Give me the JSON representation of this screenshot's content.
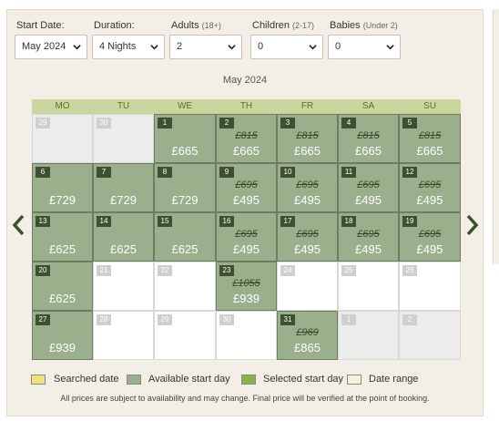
{
  "search": {
    "start_date": {
      "label": "Start Date:",
      "value": "May 2024"
    },
    "duration": {
      "label": "Duration:",
      "value": "4 Nights"
    },
    "adults": {
      "label": "Adults",
      "sub": "(18+)",
      "value": "2"
    },
    "children": {
      "label": "Children",
      "sub": "(2-17)",
      "value": "0"
    },
    "babies": {
      "label": "Babies",
      "sub": "(Under 2)",
      "value": "0"
    }
  },
  "calendar": {
    "month_title": "May 2024",
    "weekdays": [
      "MO",
      "TU",
      "WE",
      "TH",
      "FR",
      "SA",
      "SU"
    ],
    "weeks": [
      [
        {
          "day": "29",
          "state": "outside",
          "old": "",
          "price": ""
        },
        {
          "day": "30",
          "state": "outside",
          "old": "",
          "price": ""
        },
        {
          "day": "1",
          "state": "available",
          "old": "",
          "price": "£665"
        },
        {
          "day": "2",
          "state": "available",
          "old": "£815",
          "price": "£665"
        },
        {
          "day": "3",
          "state": "available",
          "old": "£815",
          "price": "£665"
        },
        {
          "day": "4",
          "state": "available",
          "old": "£815",
          "price": "£665"
        },
        {
          "day": "5",
          "state": "available",
          "old": "£815",
          "price": "£665"
        }
      ],
      [
        {
          "day": "6",
          "state": "available",
          "old": "",
          "price": "£729"
        },
        {
          "day": "7",
          "state": "available",
          "old": "",
          "price": "£729"
        },
        {
          "day": "8",
          "state": "available",
          "old": "",
          "price": "£729"
        },
        {
          "day": "9",
          "state": "available",
          "old": "£695",
          "price": "£495"
        },
        {
          "day": "10",
          "state": "available",
          "old": "£695",
          "price": "£495"
        },
        {
          "day": "11",
          "state": "available",
          "old": "£695",
          "price": "£495"
        },
        {
          "day": "12",
          "state": "available",
          "old": "£695",
          "price": "£495"
        }
      ],
      [
        {
          "day": "13",
          "state": "available",
          "old": "",
          "price": "£625"
        },
        {
          "day": "14",
          "state": "available",
          "old": "",
          "price": "£625"
        },
        {
          "day": "15",
          "state": "available",
          "old": "",
          "price": "£625"
        },
        {
          "day": "16",
          "state": "available",
          "old": "£695",
          "price": "£495"
        },
        {
          "day": "17",
          "state": "available",
          "old": "£695",
          "price": "£495"
        },
        {
          "day": "18",
          "state": "available",
          "old": "£695",
          "price": "£495"
        },
        {
          "day": "19",
          "state": "available",
          "old": "£695",
          "price": "£495"
        }
      ],
      [
        {
          "day": "20",
          "state": "available",
          "old": "",
          "price": "£625"
        },
        {
          "day": "21",
          "state": "empty",
          "old": "",
          "price": ""
        },
        {
          "day": "22",
          "state": "empty",
          "old": "",
          "price": ""
        },
        {
          "day": "23",
          "state": "available",
          "old": "£1055",
          "price": "£939"
        },
        {
          "day": "24",
          "state": "empty",
          "old": "",
          "price": ""
        },
        {
          "day": "25",
          "state": "empty",
          "old": "",
          "price": ""
        },
        {
          "day": "26",
          "state": "empty",
          "old": "",
          "price": ""
        }
      ],
      [
        {
          "day": "27",
          "state": "available",
          "old": "",
          "price": "£939"
        },
        {
          "day": "28",
          "state": "empty",
          "old": "",
          "price": ""
        },
        {
          "day": "29",
          "state": "empty",
          "old": "",
          "price": ""
        },
        {
          "day": "30",
          "state": "empty",
          "old": "",
          "price": ""
        },
        {
          "day": "31",
          "state": "available",
          "old": "£969",
          "price": "£865"
        },
        {
          "day": "1",
          "state": "outside",
          "old": "",
          "price": ""
        },
        {
          "day": "2",
          "state": "outside",
          "old": "",
          "price": ""
        }
      ]
    ]
  },
  "legend": {
    "searched": "Searched date",
    "available": "Available start day",
    "selected": "Selected start day",
    "range": "Date range"
  },
  "colors": {
    "searched": "#f3e27a",
    "available": "#9aaf8c",
    "selected": "#8db04a",
    "range": "#eef5d8"
  },
  "disclaimer": "All prices are subject to availability and may change. Final price will be verified at the point of booking."
}
